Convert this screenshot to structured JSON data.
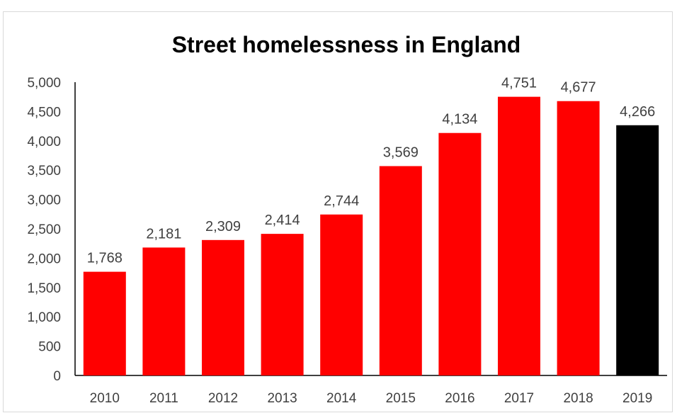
{
  "chart_data": {
    "type": "bar",
    "title": "Street homelessness in England",
    "xlabel": "",
    "ylabel": "",
    "categories": [
      "2010",
      "2011",
      "2012",
      "2013",
      "2014",
      "2015",
      "2016",
      "2017",
      "2018",
      "2019"
    ],
    "values": [
      1768,
      2181,
      2309,
      2414,
      2744,
      3569,
      4134,
      4751,
      4677,
      4266
    ],
    "data_labels": [
      "1,768",
      "2,181",
      "2,309",
      "2,414",
      "2,744",
      "3,569",
      "4,134",
      "4,751",
      "4,677",
      "4,266"
    ],
    "bar_colors": [
      "#ff0000",
      "#ff0000",
      "#ff0000",
      "#ff0000",
      "#ff0000",
      "#ff0000",
      "#ff0000",
      "#ff0000",
      "#ff0000",
      "#000000"
    ],
    "ylim": [
      0,
      5000
    ],
    "yticks": [
      0,
      500,
      1000,
      1500,
      2000,
      2500,
      3000,
      3500,
      4000,
      4500,
      5000
    ],
    "ytick_labels": [
      "0",
      "500",
      "1,000",
      "1,500",
      "2,000",
      "2,500",
      "3,000",
      "3,500",
      "4,000",
      "4,500",
      "5,000"
    ],
    "grid": false,
    "legend": "none"
  }
}
